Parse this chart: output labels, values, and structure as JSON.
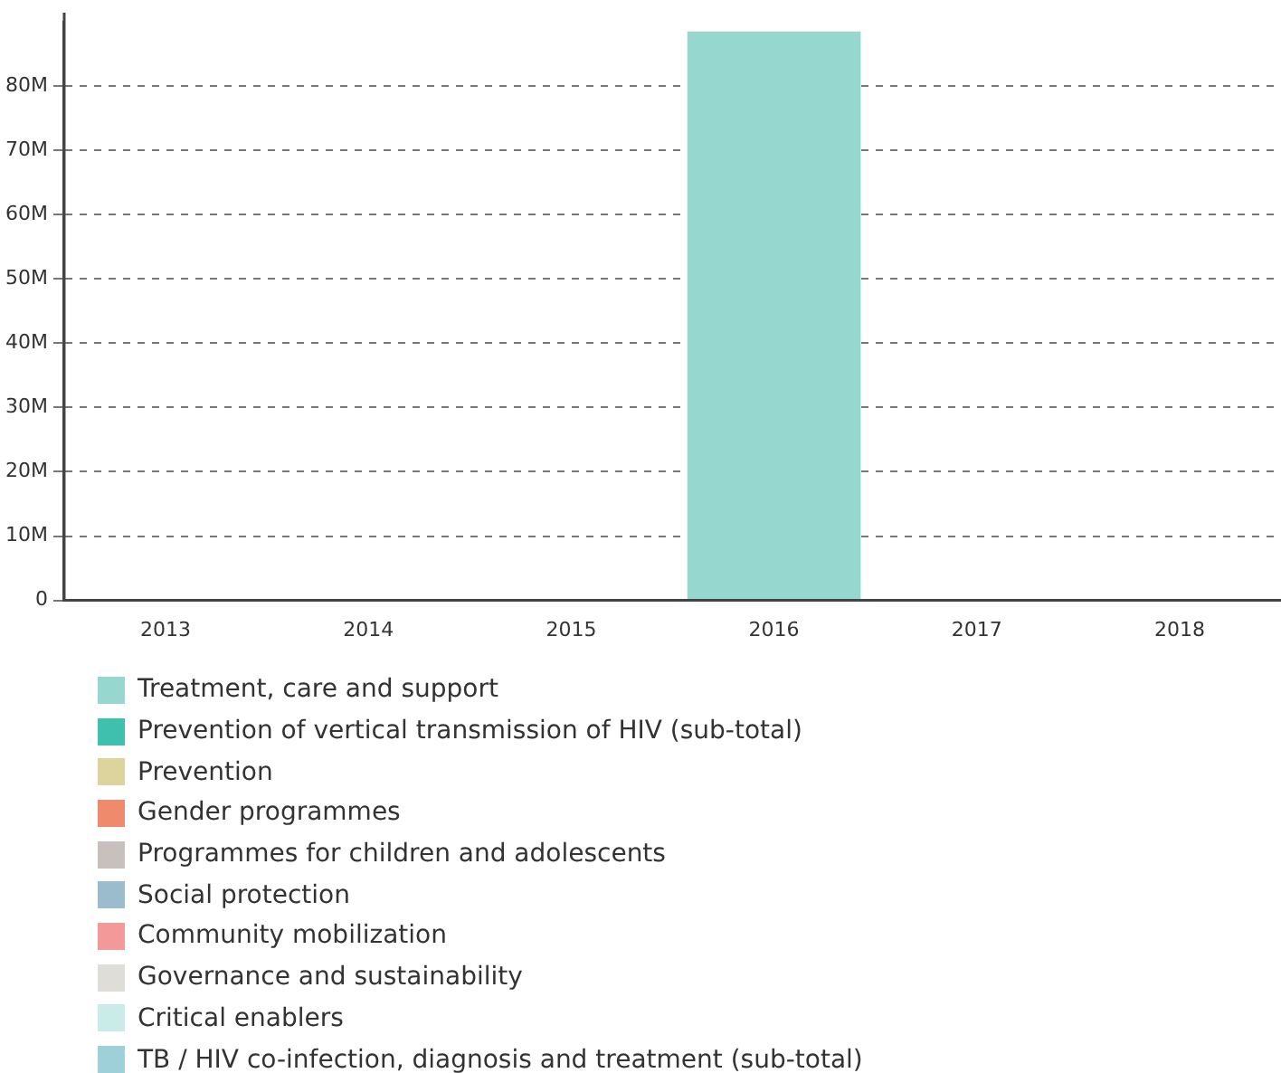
{
  "chart_data": {
    "type": "bar",
    "stacked": true,
    "categories": [
      "2013",
      "2014",
      "2015",
      "2016",
      "2017",
      "2018"
    ],
    "series": [
      {
        "name": "Treatment, care and support",
        "color": "#96d7cf",
        "values": [
          null,
          null,
          null,
          88500000,
          null,
          null
        ]
      },
      {
        "name": "Prevention of vertical transmission of HIV (sub-total)",
        "color": "#3fbfad",
        "values": [
          null,
          null,
          null,
          null,
          null,
          null
        ]
      },
      {
        "name": "Prevention",
        "color": "#dcd49c",
        "values": [
          null,
          null,
          null,
          null,
          null,
          null
        ]
      },
      {
        "name": "Gender programmes",
        "color": "#f08a6c",
        "values": [
          null,
          null,
          null,
          null,
          null,
          null
        ]
      },
      {
        "name": "Programmes for children and adolescents",
        "color": "#c8c0bc",
        "values": [
          null,
          null,
          null,
          null,
          null,
          null
        ]
      },
      {
        "name": "Social protection",
        "color": "#9bbccc",
        "values": [
          null,
          null,
          null,
          null,
          null,
          null
        ]
      },
      {
        "name": "Community mobilization",
        "color": "#f3999a",
        "values": [
          null,
          null,
          null,
          null,
          null,
          null
        ]
      },
      {
        "name": "Governance and sustainability",
        "color": "#deddd7",
        "values": [
          null,
          null,
          null,
          null,
          null,
          null
        ]
      },
      {
        "name": "Critical enablers",
        "color": "#c9ece8",
        "values": [
          null,
          null,
          null,
          null,
          null,
          null
        ]
      },
      {
        "name": "TB / HIV co-infection, diagnosis and treatment (sub-total)",
        "color": "#9ed0da",
        "values": [
          null,
          null,
          null,
          null,
          null,
          null
        ]
      }
    ],
    "ylim": [
      0,
      90000000
    ],
    "yticks": [
      {
        "value": 0,
        "label": "0"
      },
      {
        "value": 10000000,
        "label": "10M"
      },
      {
        "value": 20000000,
        "label": "20M"
      },
      {
        "value": 30000000,
        "label": "30M"
      },
      {
        "value": 40000000,
        "label": "40M"
      },
      {
        "value": 50000000,
        "label": "50M"
      },
      {
        "value": 60000000,
        "label": "60M"
      },
      {
        "value": 70000000,
        "label": "70M"
      },
      {
        "value": 80000000,
        "label": "80M"
      }
    ],
    "grid": "y",
    "legend": "bottom"
  }
}
